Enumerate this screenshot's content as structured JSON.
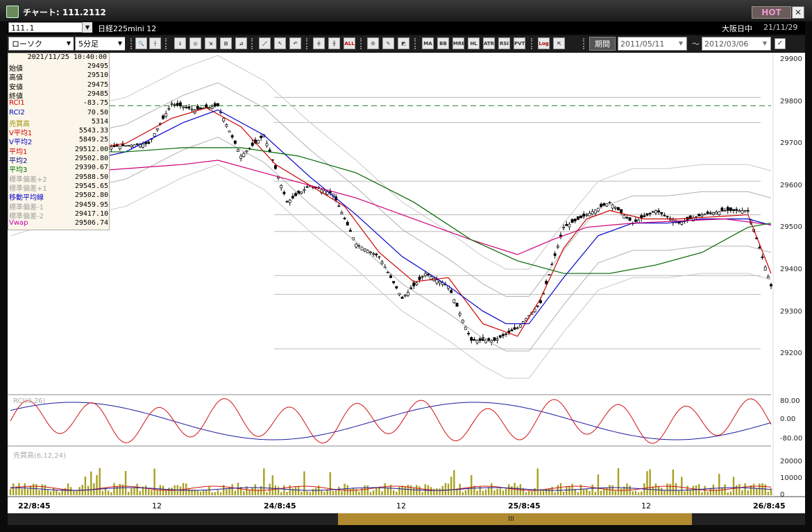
{
  "window": {
    "title": "チャート: 111.2112",
    "hot_label": "HOT"
  },
  "symbol_bar": {
    "code": "111.1",
    "name": "日経225mini 12",
    "market": "大阪日中",
    "date": "21/11/29"
  },
  "toolbar": {
    "chart_type": "ローソク",
    "timeframe": "5分足",
    "buttons": [
      "MA",
      "BB",
      "MRE",
      "HL",
      "ATR",
      "RSI",
      "PVT",
      "Log"
    ],
    "period_label": "期間",
    "date_from": "2011/05/11",
    "date_sep": "〜",
    "date_to": "2012/03/06"
  },
  "info_panel": {
    "timestamp": "2021/11/25  10:40:00",
    "rows": [
      {
        "label": "始値",
        "value": "29495",
        "color": "#000000"
      },
      {
        "label": "高値",
        "value": "29510",
        "color": "#000000"
      },
      {
        "label": "安値",
        "value": "29475",
        "color": "#000000"
      },
      {
        "label": "終値",
        "value": "29485",
        "color": "#000000"
      },
      {
        "label": "RCI1",
        "value": "-83.75",
        "color": "#d00000"
      },
      {
        "label": "RCI2",
        "value": "70.50",
        "color": "#0000cc"
      },
      {
        "label": "売買高",
        "value": "5314",
        "color": "#a09000"
      },
      {
        "label": "V平均1",
        "value": "5543.33",
        "color": "#d00000"
      },
      {
        "label": "V平均2",
        "value": "5849.25",
        "color": "#0000cc"
      },
      {
        "label": "平均1",
        "value": "29512.00",
        "color": "#d00000"
      },
      {
        "label": "平均2",
        "value": "29502.80",
        "color": "#000080"
      },
      {
        "label": "平均3",
        "value": "29390.67",
        "color": "#007000"
      },
      {
        "label": "標準偏差+2",
        "value": "29588.50",
        "color": "#a0a0a0"
      },
      {
        "label": "標準偏差+1",
        "value": "29545.65",
        "color": "#a0a0a0"
      },
      {
        "label": "移動平均線",
        "value": "29502.80",
        "color": "#0000cc"
      },
      {
        "label": "標準偏差-1",
        "value": "29459.95",
        "color": "#a0a0a0"
      },
      {
        "label": "標準偏差-2",
        "value": "29417.10",
        "color": "#a0a0a0"
      },
      {
        "label": "Vwap",
        "value": "29506.74",
        "color": "#cc00aa"
      }
    ]
  },
  "price_axis": [
    "29900",
    "29800",
    "29700",
    "29600",
    "29500",
    "29400",
    "29300",
    "29200"
  ],
  "rci_panel": {
    "label": "RCI(9,26)",
    "ticks": [
      "80.00",
      "0.00",
      "-80.00"
    ]
  },
  "volume_panel": {
    "label": "売買高(6,12,24)",
    "ticks": [
      "20000",
      "10000",
      "0"
    ]
  },
  "x_axis": [
    {
      "label": "22/8:45",
      "bold": true
    },
    {
      "label": "12",
      "bold": false
    },
    {
      "label": "24/8:45",
      "bold": true
    },
    {
      "label": "12",
      "bold": false
    },
    {
      "label": "25/8:45",
      "bold": true
    },
    {
      "label": "12",
      "bold": false
    },
    {
      "label": "26/8:45",
      "bold": true
    }
  ],
  "scrollbar_grip": "III",
  "chart_data": {
    "type": "line",
    "xlabel": "",
    "ylabel": "",
    "ylim": [
      29150,
      29900
    ],
    "series": [
      {
        "color": "#000000",
        "x_index": [
          0,
          8,
          16,
          24,
          28,
          32,
          36,
          40,
          44,
          48,
          52,
          56,
          60,
          64,
          68,
          72,
          76,
          80,
          84,
          88,
          92,
          96,
          100,
          104,
          108,
          112,
          116,
          120,
          124,
          128,
          132
        ],
        "values": [
          29660,
          29670,
          29690,
          29700,
          29795,
          29780,
          29790,
          29670,
          29720,
          29560,
          29600,
          29580,
          29460,
          29430,
          29330,
          29390,
          29360,
          29230,
          29230,
          29260,
          29320,
          29500,
          29530,
          29560,
          29510,
          29540,
          29510,
          29530,
          29540,
          29540,
          29360
        ]
      },
      {
        "color": "#cc0000",
        "x_index": [
          0,
          10,
          20,
          28,
          34,
          40,
          46,
          52,
          58,
          64,
          70,
          76,
          82,
          88,
          92,
          96,
          100,
          104,
          110,
          116,
          122,
          128,
          132
        ],
        "values": [
          29665,
          29680,
          29700,
          29760,
          29785,
          29740,
          29650,
          29600,
          29550,
          29440,
          29370,
          29380,
          29270,
          29240,
          29330,
          29450,
          29520,
          29540,
          29520,
          29520,
          29525,
          29530,
          29390
        ]
      },
      {
        "color": "#0000cc",
        "x_index": [
          0,
          10,
          20,
          30,
          36,
          44,
          52,
          60,
          68,
          76,
          82,
          86,
          90,
          96,
          102,
          108,
          114,
          120,
          128,
          132
        ],
        "values": [
          29610,
          29650,
          29680,
          29750,
          29780,
          29720,
          29620,
          29530,
          29430,
          29360,
          29300,
          29270,
          29270,
          29380,
          29480,
          29510,
          29510,
          29520,
          29520,
          29505
        ]
      },
      {
        "color": "#cc0077",
        "x_index": [
          0,
          10,
          20,
          30,
          36,
          44,
          52,
          60,
          70,
          80,
          88,
          94,
          100,
          108,
          116,
          124,
          132
        ],
        "values": [
          29610,
          29630,
          29640,
          29650,
          29660,
          29630,
          29600,
          29570,
          29520,
          29470,
          29435,
          29470,
          29500,
          29510,
          29515,
          29520,
          29506
        ]
      },
      {
        "color": "#006600",
        "x_index": [
          0,
          10,
          20,
          30,
          40,
          50,
          60,
          70,
          80,
          88,
          96,
          104,
          112,
          120,
          128,
          132
        ],
        "values": [
          29700,
          29680,
          29680,
          29690,
          29690,
          29670,
          29630,
          29560,
          29470,
          29420,
          29390,
          29390,
          29410,
          29440,
          29500,
          29510
        ]
      }
    ]
  }
}
